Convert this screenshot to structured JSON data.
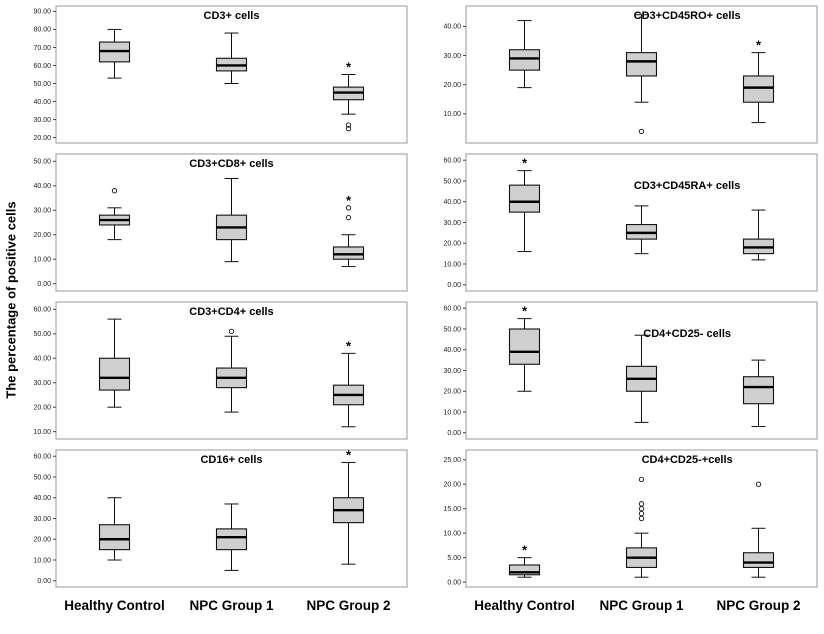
{
  "figure": {
    "ylabel": "The percentage of positive cells",
    "group_labels": [
      "Healthy Control",
      "NPC Group 1",
      "NPC Group 2"
    ]
  },
  "chart_data": [
    {
      "type": "box",
      "title": "CD3+ cells",
      "ylim": [
        17,
        93
      ],
      "yticks": [
        20,
        30,
        40,
        50,
        60,
        70,
        80,
        90
      ],
      "groups": [
        "Healthy Control",
        "NPC Group 1",
        "NPC Group 2"
      ],
      "boxes": [
        {
          "whislo": 53,
          "q1": 62,
          "med": 68,
          "q3": 73,
          "whishi": 80,
          "outliers": [],
          "star": false
        },
        {
          "whislo": 50,
          "q1": 57,
          "med": 60,
          "q3": 64,
          "whishi": 78,
          "outliers": [],
          "star": false
        },
        {
          "whislo": 33,
          "q1": 41,
          "med": 45,
          "q3": 48,
          "whishi": 55,
          "outliers": [
            27,
            25
          ],
          "star": true
        }
      ]
    },
    {
      "type": "box",
      "title": "CD3+CD45RO+ cells",
      "ylim": [
        0,
        47
      ],
      "yticks": [
        10,
        20,
        30,
        40
      ],
      "groups": [
        "Healthy Control",
        "NPC Group 1",
        "NPC Group 2"
      ],
      "boxes": [
        {
          "whislo": 19,
          "q1": 25,
          "med": 29,
          "q3": 32,
          "whishi": 42,
          "outliers": [],
          "star": false
        },
        {
          "whislo": 14,
          "q1": 23,
          "med": 28,
          "q3": 31,
          "whishi": 44,
          "outliers": [
            4
          ],
          "star": false
        },
        {
          "whislo": 7,
          "q1": 14,
          "med": 19,
          "q3": 23,
          "whishi": 31,
          "outliers": [],
          "star": true
        }
      ]
    },
    {
      "type": "box",
      "title": "CD3+CD8+ cells",
      "ylim": [
        -3,
        53
      ],
      "yticks": [
        0,
        10,
        20,
        30,
        40,
        50
      ],
      "groups": [
        "Healthy Control",
        "NPC Group 1",
        "NPC Group 2"
      ],
      "boxes": [
        {
          "whislo": 18,
          "q1": 24,
          "med": 26,
          "q3": 28,
          "whishi": 31,
          "outliers": [
            38
          ],
          "star": false
        },
        {
          "whislo": 9,
          "q1": 18,
          "med": 23,
          "q3": 28,
          "whishi": 43,
          "outliers": [],
          "star": false
        },
        {
          "whislo": 7,
          "q1": 10,
          "med": 12,
          "q3": 15,
          "whishi": 20,
          "outliers": [
            27,
            31
          ],
          "star": true
        }
      ]
    },
    {
      "type": "box",
      "title": "CD3+CD45RA+ cells",
      "ylim": [
        -3,
        63
      ],
      "yticks": [
        0,
        10,
        20,
        30,
        40,
        50,
        60
      ],
      "groups": [
        "Healthy Control",
        "NPC Group 1",
        "NPC Group 2"
      ],
      "boxes": [
        {
          "whislo": 16,
          "q1": 35,
          "med": 40,
          "q3": 48,
          "whishi": 55,
          "outliers": [],
          "star": true
        },
        {
          "whislo": 15,
          "q1": 22,
          "med": 25,
          "q3": 29,
          "whishi": 38,
          "outliers": [],
          "star": false
        },
        {
          "whislo": 12,
          "q1": 15,
          "med": 18,
          "q3": 22,
          "whishi": 36,
          "outliers": [],
          "star": false
        }
      ]
    },
    {
      "type": "box",
      "title": "CD3+CD4+ cells",
      "ylim": [
        7,
        63
      ],
      "yticks": [
        10,
        20,
        30,
        40,
        50,
        60
      ],
      "groups": [
        "Healthy Control",
        "NPC Group 1",
        "NPC Group 2"
      ],
      "boxes": [
        {
          "whislo": 20,
          "q1": 27,
          "med": 32,
          "q3": 40,
          "whishi": 56,
          "outliers": [],
          "star": false
        },
        {
          "whislo": 18,
          "q1": 28,
          "med": 32,
          "q3": 36,
          "whishi": 49,
          "outliers": [
            51
          ],
          "star": false
        },
        {
          "whislo": 12,
          "q1": 21,
          "med": 25,
          "q3": 29,
          "whishi": 42,
          "outliers": [],
          "star": true
        }
      ]
    },
    {
      "type": "box",
      "title": "CD4+CD25- cells",
      "ylim": [
        -3,
        63
      ],
      "yticks": [
        0,
        10,
        20,
        30,
        40,
        50,
        60
      ],
      "groups": [
        "Healthy Control",
        "NPC Group 1",
        "NPC Group 2"
      ],
      "boxes": [
        {
          "whislo": 20,
          "q1": 33,
          "med": 39,
          "q3": 50,
          "whishi": 55,
          "outliers": [],
          "star": true
        },
        {
          "whislo": 5,
          "q1": 20,
          "med": 26,
          "q3": 32,
          "whishi": 47,
          "outliers": [],
          "star": false
        },
        {
          "whislo": 3,
          "q1": 14,
          "med": 22,
          "q3": 27,
          "whishi": 35,
          "outliers": [],
          "star": false
        }
      ]
    },
    {
      "type": "box",
      "title": "CD16+ cells",
      "ylim": [
        -3,
        63
      ],
      "yticks": [
        0,
        10,
        20,
        30,
        40,
        50,
        60
      ],
      "groups": [
        "Healthy Control",
        "NPC Group 1",
        "NPC Group 2"
      ],
      "boxes": [
        {
          "whislo": 10,
          "q1": 15,
          "med": 20,
          "q3": 27,
          "whishi": 40,
          "outliers": [],
          "star": false
        },
        {
          "whislo": 5,
          "q1": 15,
          "med": 21,
          "q3": 25,
          "whishi": 37,
          "outliers": [],
          "star": false
        },
        {
          "whislo": 8,
          "q1": 28,
          "med": 34,
          "q3": 40,
          "whishi": 57,
          "outliers": [],
          "star": true
        }
      ]
    },
    {
      "type": "box",
      "title": "CD4+CD25-+cells",
      "ylim": [
        -1,
        27
      ],
      "yticks": [
        0,
        5,
        10,
        15,
        20,
        25
      ],
      "groups": [
        "Healthy Control",
        "NPC Group 1",
        "NPC Group 2"
      ],
      "boxes": [
        {
          "whislo": 1,
          "q1": 1.5,
          "med": 2,
          "q3": 3.5,
          "whishi": 5,
          "outliers": [],
          "star": true
        },
        {
          "whislo": 1,
          "q1": 3,
          "med": 5,
          "q3": 7,
          "whishi": 10,
          "outliers": [
            13,
            14,
            15,
            16,
            21
          ],
          "star": false
        },
        {
          "whislo": 1,
          "q1": 3,
          "med": 4,
          "q3": 6,
          "whishi": 11,
          "outliers": [
            20
          ],
          "star": false
        }
      ]
    }
  ]
}
